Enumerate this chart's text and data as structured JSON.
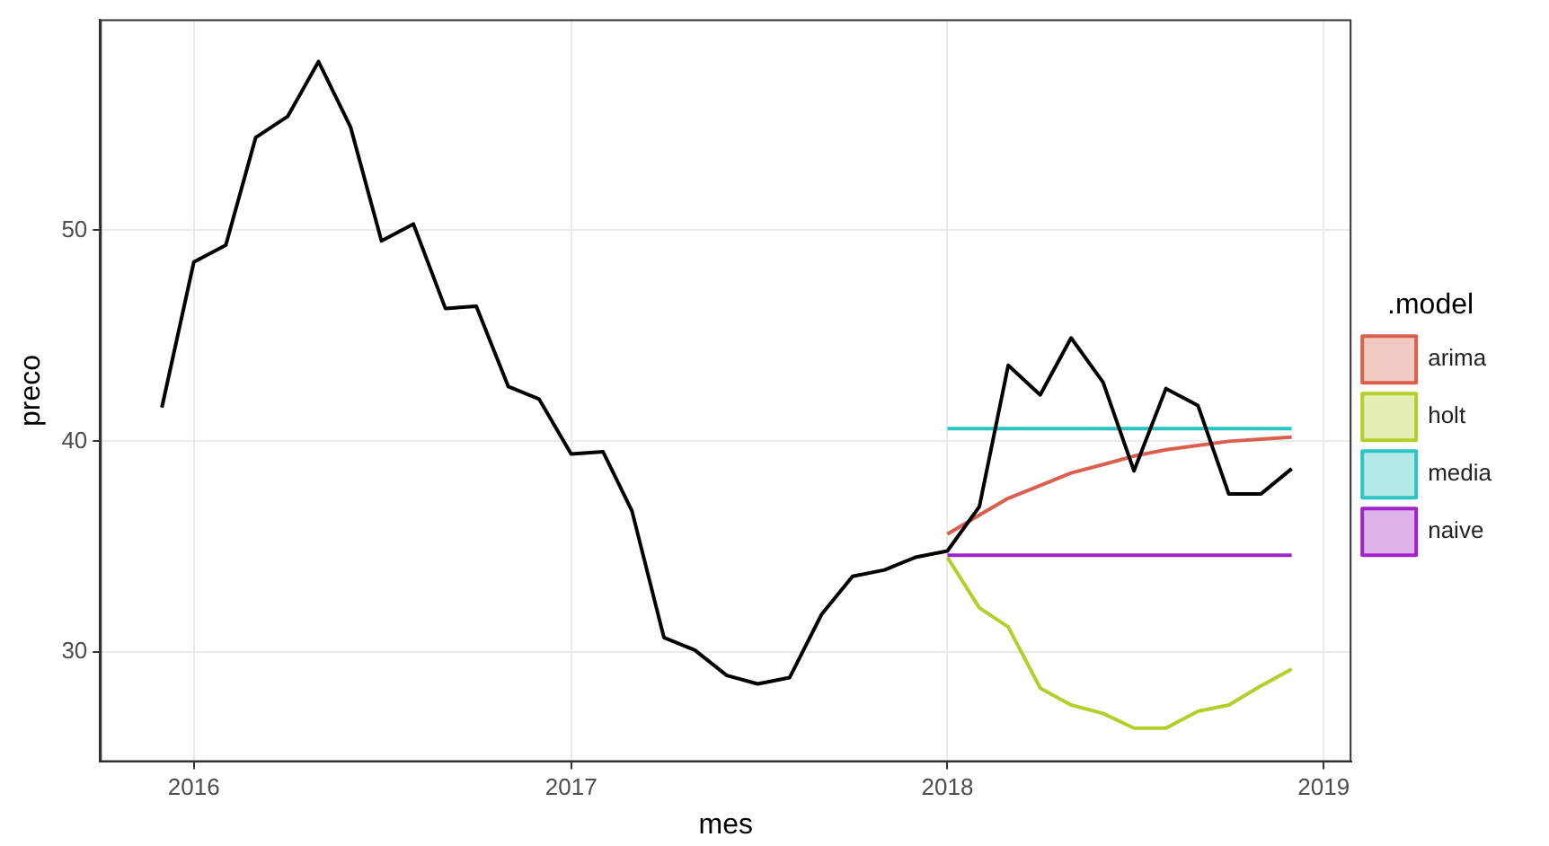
{
  "chart_data": {
    "type": "line",
    "xlabel": "mes",
    "ylabel": "preco",
    "legend_title": ".model",
    "legend": "right",
    "grid": true,
    "marker": "none",
    "xlim": [
      "2015-10-02",
      "2019-01-28"
    ],
    "xticks": [
      {
        "value": "2016",
        "label": "2016"
      },
      {
        "value": "2017",
        "label": "2017"
      },
      {
        "value": "2018",
        "label": "2018"
      },
      {
        "value": "2019",
        "label": "2019"
      }
    ],
    "ylim": [
      24.8,
      60
    ],
    "yticks": [
      30,
      40,
      50
    ],
    "series": [
      {
        "color": "#000000",
        "x": [
          "2015-12",
          "2016-01",
          "2016-02",
          "2016-03",
          "2016-04",
          "2016-05",
          "2016-06",
          "2016-07",
          "2016-08",
          "2016-09",
          "2016-10",
          "2016-11",
          "2016-12",
          "2017-01",
          "2017-02",
          "2017-03",
          "2017-04",
          "2017-05",
          "2017-06",
          "2017-07",
          "2017-08",
          "2017-09",
          "2017-10",
          "2017-11",
          "2017-12",
          "2018-01",
          "2018-02",
          "2018-03",
          "2018-04",
          "2018-05",
          "2018-06",
          "2018-07",
          "2018-08",
          "2018-09",
          "2018-10",
          "2018-11",
          "2018-12"
        ],
        "values": [
          41.6,
          48.5,
          49.3,
          54.4,
          55.4,
          58.0,
          54.9,
          49.5,
          50.3,
          46.3,
          46.4,
          42.6,
          42.0,
          39.4,
          39.5,
          36.7,
          30.7,
          30.1,
          28.9,
          28.5,
          28.8,
          31.8,
          33.6,
          33.9,
          34.5,
          34.8,
          36.9,
          43.6,
          42.2,
          44.9,
          42.8,
          38.6,
          42.5,
          41.7,
          37.5,
          37.5,
          38.7
        ]
      },
      {
        "name": "arima",
        "color": "#d9604f",
        "x": [
          "2018-01",
          "2018-02",
          "2018-03",
          "2018-04",
          "2018-05",
          "2018-06",
          "2018-07",
          "2018-08",
          "2018-09",
          "2018-10",
          "2018-11",
          "2018-12"
        ],
        "values": [
          35.6,
          36.5,
          37.3,
          37.9,
          38.5,
          38.9,
          39.3,
          39.6,
          39.8,
          40.0,
          40.1,
          40.2
        ]
      },
      {
        "name": "holt",
        "color": "#b3cf2a",
        "x": [
          "2018-01",
          "2018-02",
          "2018-03",
          "2018-04",
          "2018-05",
          "2018-06",
          "2018-07",
          "2018-08",
          "2018-09",
          "2018-10",
          "2018-11",
          "2018-12"
        ],
        "values": [
          34.5,
          32.1,
          31.2,
          28.3,
          27.5,
          27.1,
          26.4,
          26.4,
          27.2,
          27.5,
          28.4,
          29.2
        ]
      },
      {
        "name": "media",
        "color": "#2ec4c4",
        "x": [
          "2018-01",
          "2018-12"
        ],
        "values": [
          40.6,
          40.6
        ]
      },
      {
        "name": "naive",
        "color": "#a024c8",
        "x": [
          "2018-01",
          "2018-12"
        ],
        "values": [
          34.6,
          34.6
        ]
      }
    ]
  }
}
